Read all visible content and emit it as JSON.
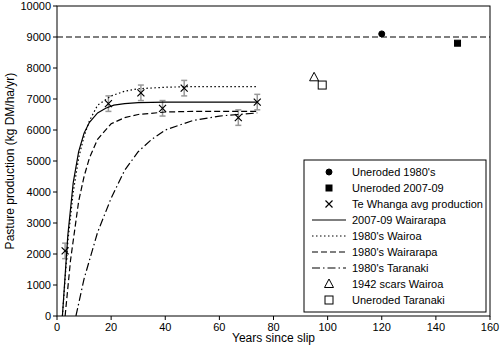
{
  "chart_data": {
    "type": "line",
    "x_label": "Years since slip",
    "y_label": "Pasture production (kg DM/ha/yr)",
    "xlim": [
      0,
      160
    ],
    "xticks": [
      0,
      20,
      40,
      60,
      80,
      100,
      120,
      140,
      160
    ],
    "ylim": [
      0,
      10000
    ],
    "yticks": [
      0,
      1000,
      2000,
      3000,
      4000,
      5000,
      6000,
      7000,
      8000,
      9000,
      10000
    ],
    "grid": false,
    "legend": "bottom-right",
    "series": [
      {
        "name": "Uneroded 1980's",
        "type": "scatter",
        "marker": "circle",
        "color": "#000000",
        "x": [
          120
        ],
        "values": [
          9100
        ]
      },
      {
        "name": "Uneroded 2007-09",
        "type": "scatter",
        "marker": "square",
        "color": "#000000",
        "x": [
          148
        ],
        "values": [
          8800
        ]
      },
      {
        "name": "Te Whanga avg production",
        "type": "scatter",
        "marker": "x",
        "color": "#000000",
        "x": [
          3,
          19,
          31,
          39,
          47,
          67,
          74
        ],
        "values": [
          2100,
          6850,
          7200,
          6700,
          7350,
          6400,
          6900
        ],
        "errors": [
          250,
          250,
          250,
          250,
          250,
          250,
          250
        ]
      },
      {
        "name": "2007-09 Wairarapa",
        "type": "line",
        "line_style": "solid",
        "color": "#000000",
        "x": [
          2,
          4,
          6,
          8,
          10,
          12,
          15,
          18,
          21,
          25,
          30,
          40,
          50,
          60,
          74
        ],
        "values": [
          0,
          2600,
          4300,
          5300,
          5900,
          6250,
          6550,
          6700,
          6800,
          6850,
          6880,
          6900,
          6900,
          6900,
          6900
        ]
      },
      {
        "name": "1980's Wairoa",
        "type": "line",
        "line_style": "dotted",
        "color": "#000000",
        "x": [
          2,
          4,
          6,
          8,
          10,
          12,
          15,
          20,
          25,
          30,
          40,
          50,
          60,
          74
        ],
        "values": [
          0,
          2400,
          4000,
          5100,
          5800,
          6300,
          6800,
          7100,
          7250,
          7330,
          7380,
          7400,
          7400,
          7400
        ]
      },
      {
        "name": "1980's Wairarapa",
        "type": "line",
        "line_style": "dashed",
        "color": "#000000",
        "x": [
          3,
          5,
          8,
          10,
          12,
          15,
          20,
          25,
          30,
          40,
          50,
          60,
          74
        ],
        "values": [
          0,
          1800,
          3700,
          4500,
          5100,
          5700,
          6200,
          6400,
          6500,
          6580,
          6600,
          6600,
          6600
        ]
      },
      {
        "name": "1980's Taranaki",
        "type": "line",
        "line_style": "dashdot",
        "color": "#000000",
        "x": [
          7,
          10,
          15,
          20,
          25,
          30,
          35,
          40,
          50,
          60,
          74
        ],
        "values": [
          0,
          1200,
          2700,
          3800,
          4700,
          5300,
          5700,
          6000,
          6300,
          6450,
          6550
        ]
      },
      {
        "name": "1942 scars Wairoa",
        "type": "scatter",
        "marker": "triangle-open",
        "color": "#000000",
        "x": [
          95
        ],
        "values": [
          7700
        ]
      },
      {
        "name": "Uneroded Taranaki",
        "type": "scatter",
        "marker": "square-open",
        "color": "#000000",
        "x": [
          98
        ],
        "values": [
          7450
        ]
      },
      {
        "type": "line",
        "line_style": "dashed",
        "color": "#000000",
        "x": [
          0,
          160
        ],
        "values": [
          9000,
          9000
        ]
      }
    ]
  }
}
